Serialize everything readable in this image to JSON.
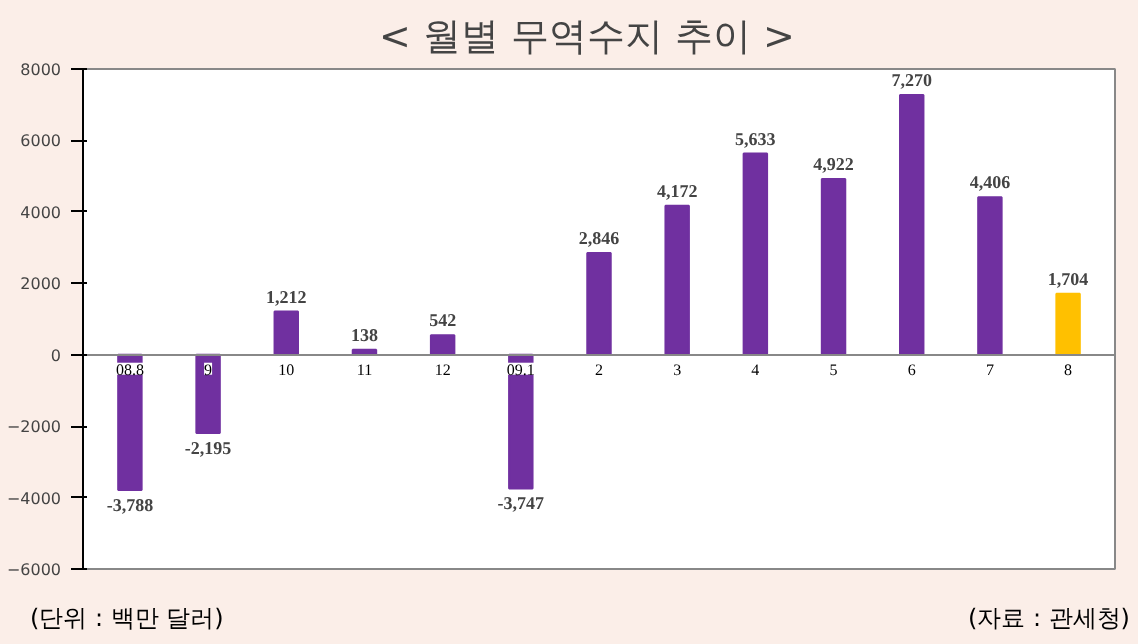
{
  "chart_data": {
    "type": "bar",
    "title": "< 월별  무역수지  추이 >",
    "categories": [
      "08.8",
      "9",
      "10",
      "11",
      "12",
      "09.1",
      "2",
      "3",
      "4",
      "5",
      "6",
      "7",
      "8"
    ],
    "values": [
      -3788,
      -2195,
      1212,
      138,
      542,
      -3747,
      2846,
      4172,
      5633,
      4922,
      7270,
      4406,
      1704
    ],
    "value_labels": [
      "-3,788",
      "-2,195",
      "1,212",
      "138",
      "542",
      "-3,747",
      "2,846",
      "4,172",
      "5,633",
      "4,922",
      "7,270",
      "4,406",
      "1,704"
    ],
    "colors": [
      "#7030a0",
      "#7030a0",
      "#7030a0",
      "#7030a0",
      "#7030a0",
      "#7030a0",
      "#7030a0",
      "#7030a0",
      "#7030a0",
      "#7030a0",
      "#7030a0",
      "#7030a0",
      "#ffc000"
    ],
    "ylim": [
      -6000,
      8000
    ],
    "yticks": [
      -6000,
      -4000,
      -2000,
      0,
      2000,
      4000,
      6000,
      8000
    ],
    "grid": false,
    "annotations": [
      "(단위 : 백만 달러)",
      "(자료 : 관세청)"
    ]
  }
}
